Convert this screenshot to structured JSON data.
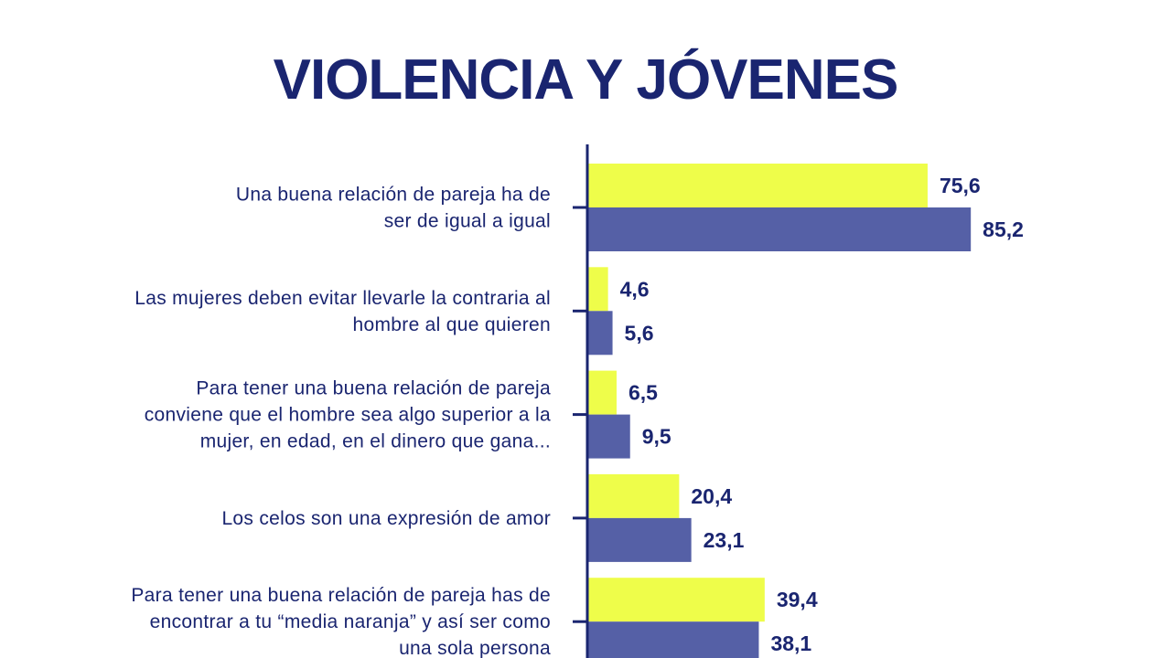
{
  "chart_data": {
    "type": "bar",
    "orientation": "horizontal",
    "title": "VIOLENCIA Y JÓVENES",
    "categories": [
      [
        "Una buena relación de pareja ha de",
        "ser de igual a igual"
      ],
      [
        "Las mujeres deben evitar llevarle la contraria al",
        "hombre al que quieren"
      ],
      [
        "Para tener una buena relación de pareja",
        "conviene que el hombre sea algo superior a la",
        "mujer, en edad, en el dinero que gana..."
      ],
      [
        "Los celos son una expresión de amor"
      ],
      [
        "Para tener una buena relación de pareja has de",
        "encontrar a tu “media naranja” y así ser como",
        "una sola persona"
      ]
    ],
    "series": [
      {
        "name": "series-1",
        "color": "#eefd4a",
        "values": [
          75.6,
          4.6,
          6.5,
          20.4,
          39.4
        ],
        "labels": [
          "75,6",
          "4,6",
          "6,5",
          "20,4",
          "39,4"
        ]
      },
      {
        "name": "series-2",
        "color": "#5560a6",
        "values": [
          85.2,
          5.6,
          9.5,
          23.1,
          38.1
        ],
        "labels": [
          "85,2",
          "5,6",
          "9,5",
          "23,1",
          "38,1"
        ]
      }
    ],
    "xlim": [
      0,
      100
    ],
    "grid": false,
    "axis_color": "#1a2570"
  }
}
